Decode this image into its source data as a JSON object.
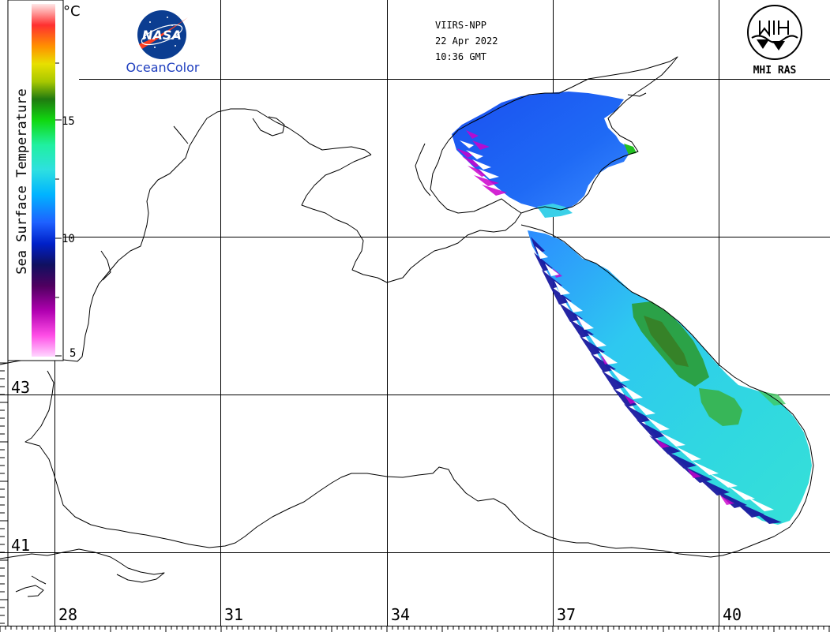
{
  "header": {
    "satellite": "VIIRS-NPP",
    "date": "22 Apr 2022",
    "time": "10:36 GMT"
  },
  "logos": {
    "nasa_text": "NASA",
    "oceancolor_text": "OceanColor",
    "mhi_text": "MHI RAS"
  },
  "colorbar": {
    "title": "Sea Surface Temperature",
    "unit": "°C",
    "ticks": [
      "15",
      "10",
      "5"
    ],
    "min": 5,
    "max": 20
  },
  "grid": {
    "longitudes": [
      "28",
      "31",
      "34",
      "37",
      "40"
    ],
    "latitudes": [
      "43",
      "41"
    ]
  },
  "colors": {
    "coast": "#000000",
    "grid": "#000000",
    "sst_cold": "#1e3cf0",
    "sst_mid": "#2ec8f0",
    "sst_warm": "#2aa81e",
    "nasa_blue": "#0b3d91",
    "nasa_red": "#fc3d21",
    "oceancolor_blue": "#1f3fbf"
  }
}
